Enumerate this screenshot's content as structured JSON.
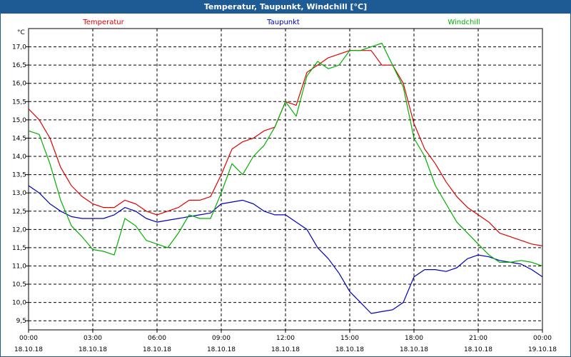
{
  "window": {
    "title": "Temperatur, Taupunkt, Windchill [°C]"
  },
  "chart_data": {
    "type": "line",
    "title": "Temperatur, Taupunkt, Windchill [°C]",
    "ylabel": "°C",
    "ylim": [
      9.25,
      17.5
    ],
    "y_ticks": [
      9.5,
      10.0,
      10.5,
      11.0,
      11.5,
      12.0,
      12.5,
      13.0,
      13.5,
      14.0,
      14.5,
      15.0,
      15.5,
      16.0,
      16.5,
      17.0
    ],
    "y_tick_labels": [
      "9,5",
      "10,0",
      "10,5",
      "11,0",
      "11,5",
      "12,0",
      "12,5",
      "13,0",
      "13,5",
      "14,0",
      "14,5",
      "15,0",
      "15,5",
      "16,0",
      "16,5",
      "17,0"
    ],
    "xlim": [
      0,
      24
    ],
    "x_ticks": [
      {
        "hour": 0,
        "time": "00:00",
        "date": "18.10.18"
      },
      {
        "hour": 3,
        "time": "03:00",
        "date": "18.10.18"
      },
      {
        "hour": 6,
        "time": "06:00",
        "date": "18.10.18"
      },
      {
        "hour": 9,
        "time": "09:00",
        "date": "18.10.18"
      },
      {
        "hour": 12,
        "time": "12:00",
        "date": "18.10.18"
      },
      {
        "hour": 15,
        "time": "15:00",
        "date": "18.10.18"
      },
      {
        "hour": 18,
        "time": "18:00",
        "date": "18.10.18"
      },
      {
        "hour": 21,
        "time": "21:00",
        "date": "18.10.18"
      },
      {
        "hour": 24,
        "time": "00:00",
        "date": "19.10.18"
      }
    ],
    "grid": true,
    "series": [
      {
        "name": "Temperatur",
        "color": "#e00000",
        "legend_position": "top-left",
        "x": [
          0,
          0.5,
          1,
          1.5,
          2,
          2.5,
          3,
          3.5,
          4,
          4.5,
          5,
          5.5,
          6,
          6.5,
          7,
          7.5,
          8,
          8.5,
          9,
          9.5,
          10,
          10.5,
          11,
          11.5,
          12,
          12.5,
          13,
          13.5,
          14,
          14.5,
          15,
          15.5,
          16,
          16.5,
          17,
          17.5,
          18,
          18.5,
          19,
          19.5,
          20,
          20.5,
          21,
          21.5,
          22,
          22.5,
          23,
          23.5,
          24
        ],
        "values": [
          15.3,
          15.0,
          14.5,
          13.7,
          13.2,
          12.9,
          12.7,
          12.6,
          12.6,
          12.8,
          12.7,
          12.5,
          12.4,
          12.5,
          12.6,
          12.8,
          12.8,
          12.9,
          13.5,
          14.2,
          14.4,
          14.5,
          14.7,
          14.8,
          15.5,
          15.4,
          16.3,
          16.5,
          16.7,
          16.8,
          16.9,
          16.9,
          16.9,
          16.5,
          16.5,
          16.0,
          14.9,
          14.2,
          13.8,
          13.3,
          12.9,
          12.6,
          12.4,
          12.2,
          11.9,
          11.8,
          11.7,
          11.6,
          11.55
        ]
      },
      {
        "name": "Taupunkt",
        "color": "#0000c0",
        "legend_position": "top-center",
        "x": [
          0,
          0.5,
          1,
          1.5,
          2,
          2.5,
          3,
          3.5,
          4,
          4.5,
          5,
          5.5,
          6,
          6.5,
          7,
          7.5,
          8,
          8.5,
          9,
          9.5,
          10,
          10.5,
          11,
          11.5,
          12,
          12.5,
          13,
          13.5,
          14,
          14.5,
          15,
          15.5,
          16,
          16.5,
          17,
          17.5,
          18,
          18.5,
          19,
          19.5,
          20,
          20.5,
          21,
          21.5,
          22,
          22.5,
          23,
          23.5,
          24
        ],
        "values": [
          13.2,
          13.0,
          12.7,
          12.5,
          12.35,
          12.3,
          12.3,
          12.3,
          12.4,
          12.6,
          12.5,
          12.3,
          12.2,
          12.25,
          12.3,
          12.35,
          12.4,
          12.45,
          12.7,
          12.75,
          12.8,
          12.7,
          12.5,
          12.4,
          12.4,
          12.2,
          12.0,
          11.5,
          11.2,
          10.8,
          10.3,
          10.0,
          9.7,
          9.75,
          9.8,
          10.0,
          10.7,
          10.9,
          10.9,
          10.85,
          10.95,
          11.2,
          11.3,
          11.25,
          11.15,
          11.1,
          11.05,
          10.9,
          10.7
        ]
      },
      {
        "name": "Windchill",
        "color": "#00b000",
        "legend_position": "top-right",
        "x": [
          0,
          0.5,
          1,
          1.5,
          2,
          2.5,
          3,
          3.5,
          4,
          4.5,
          5,
          5.5,
          6,
          6.5,
          7,
          7.5,
          8,
          8.5,
          9,
          9.5,
          10,
          10.5,
          11,
          11.5,
          12,
          12.5,
          13,
          13.5,
          14,
          14.5,
          15,
          15.5,
          16,
          16.5,
          17,
          17.5,
          18,
          18.5,
          19,
          19.5,
          20,
          20.5,
          21,
          21.5,
          22,
          22.5,
          23,
          23.5,
          24
        ],
        "values": [
          14.7,
          14.6,
          13.8,
          12.8,
          12.1,
          11.8,
          11.45,
          11.4,
          11.3,
          12.3,
          12.1,
          11.7,
          11.6,
          11.5,
          11.9,
          12.4,
          12.3,
          12.3,
          13.0,
          13.8,
          13.5,
          14.0,
          14.3,
          14.8,
          15.5,
          15.1,
          16.2,
          16.6,
          16.4,
          16.5,
          16.9,
          16.9,
          17.0,
          17.1,
          16.5,
          15.9,
          14.5,
          14.0,
          13.2,
          12.7,
          12.2,
          11.9,
          11.6,
          11.3,
          11.1,
          11.1,
          11.15,
          11.1,
          11.0
        ]
      }
    ]
  }
}
